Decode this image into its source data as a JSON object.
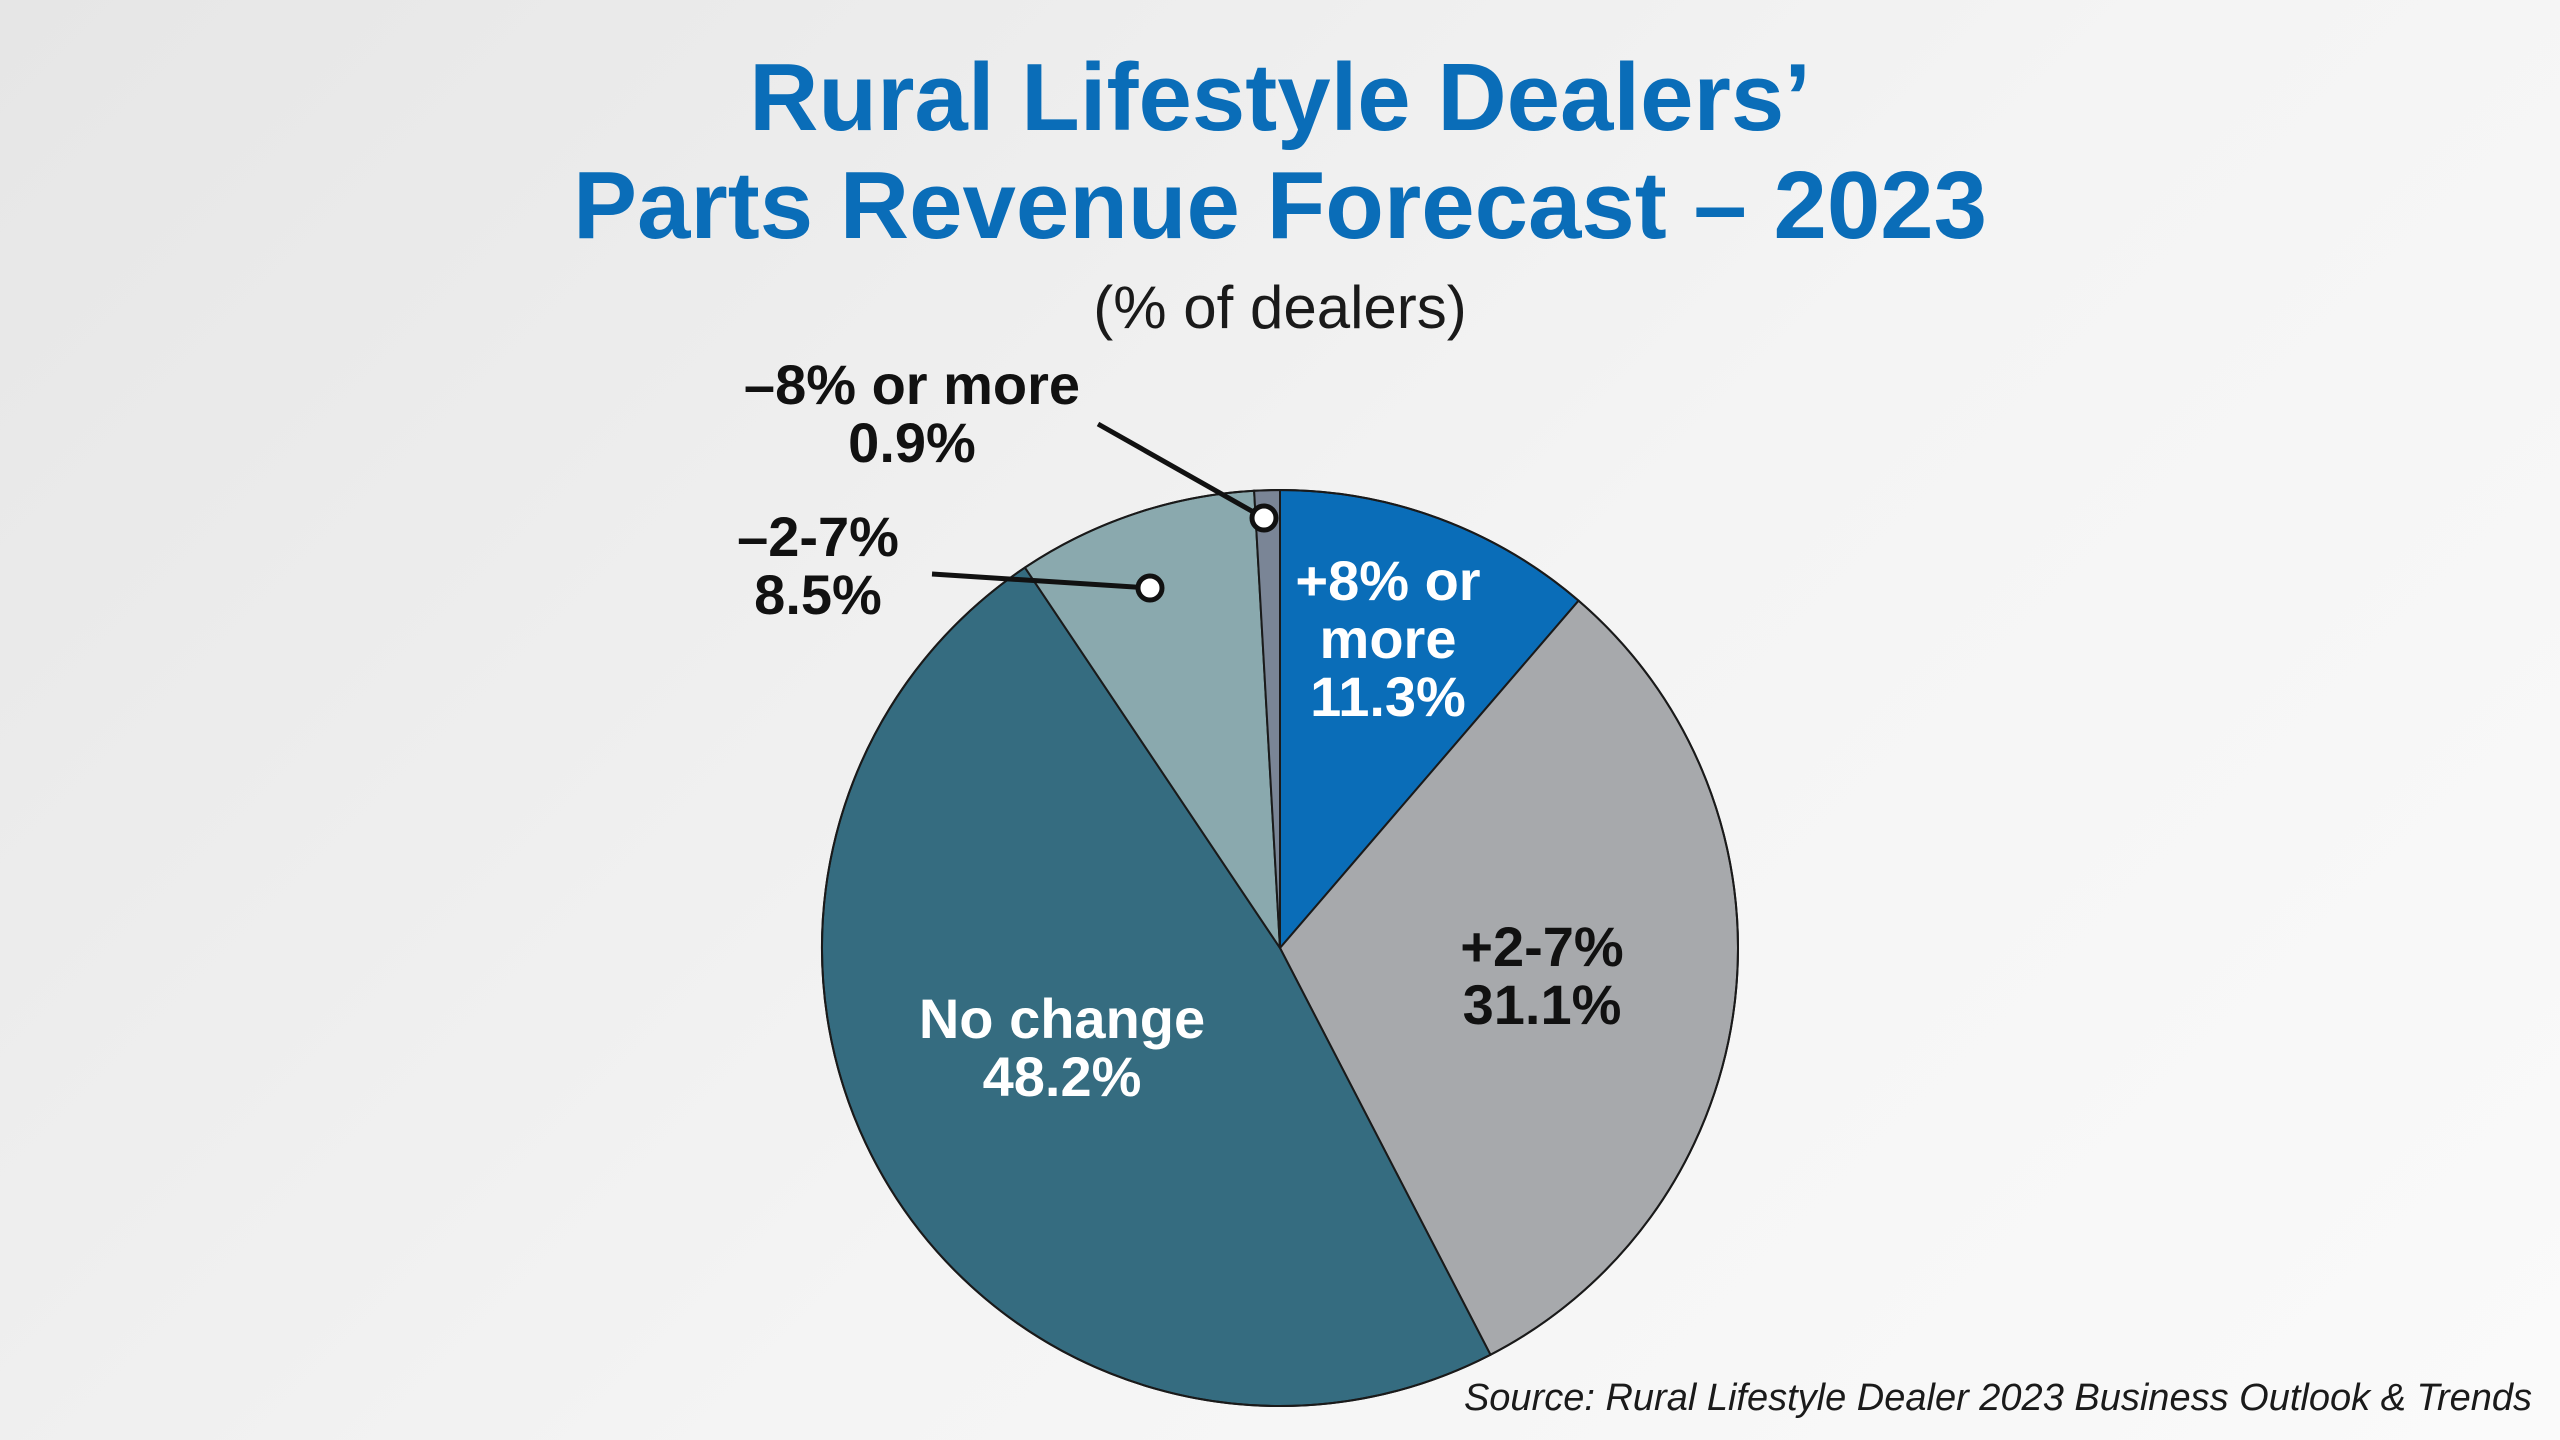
{
  "chart_data": {
    "type": "pie",
    "title": "Rural Lifestyle Dealers’ Parts Revenue Forecast – 2023",
    "title_lines": [
      "Rural Lifestyle Dealers’",
      "Parts Revenue Forecast – 2023"
    ],
    "subtitle": "(% of dealers)",
    "source": "Source: Rural Lifestyle Dealer 2023 Business Outlook & Trends",
    "start_angle_deg": 0,
    "direction": "clockwise",
    "slices": [
      {
        "key": "plus8",
        "label_lines": [
          "+8% or",
          "more"
        ],
        "value": 11.3,
        "value_text": "11.3%",
        "color": "#0a6db8",
        "text_color": "#ffffff"
      },
      {
        "key": "plus2-7",
        "label_lines": [
          "+2-7%"
        ],
        "value": 31.1,
        "value_text": "31.1%",
        "color": "#a7a9ac",
        "text_color": "#111111"
      },
      {
        "key": "nochange",
        "label_lines": [
          "No change"
        ],
        "value": 48.2,
        "value_text": "48.2%",
        "color": "#356c80",
        "text_color": "#ffffff"
      },
      {
        "key": "minus2-7",
        "label_lines": [
          "–2-7%"
        ],
        "value": 8.5,
        "value_text": "8.5%",
        "color": "#8aa9ae",
        "text_color": "#111111"
      },
      {
        "key": "minus8",
        "label_lines": [
          "–8% or more"
        ],
        "value": 0.9,
        "value_text": "0.9%",
        "color": "#7a8596",
        "text_color": "#111111"
      }
    ]
  }
}
